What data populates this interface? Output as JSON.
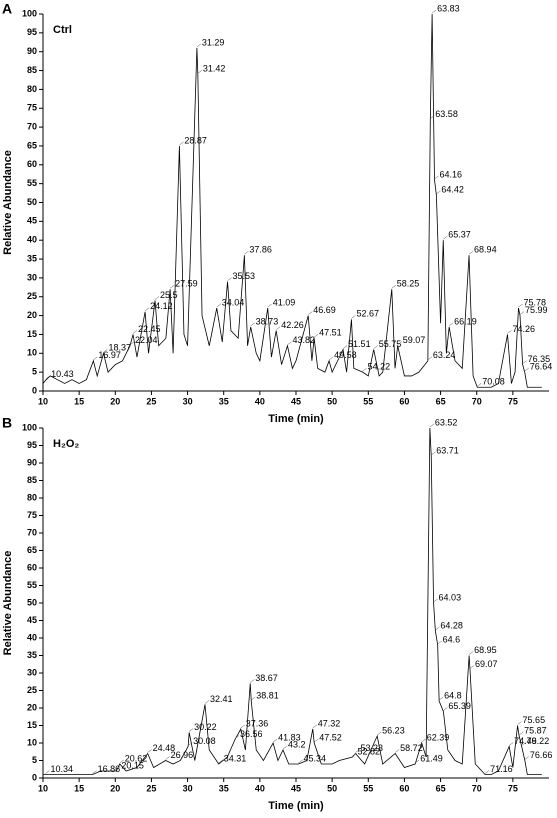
{
  "chart_data": [
    {
      "type": "line",
      "panel_label": "A",
      "title": "Ctrl",
      "xlabel": "Time (min)",
      "ylabel": "Relative Abundance",
      "color": "#000000",
      "xlim": [
        10,
        80
      ],
      "ylim": [
        0,
        100
      ],
      "xticks": [
        10,
        15,
        20,
        25,
        30,
        35,
        40,
        45,
        50,
        55,
        60,
        65,
        70,
        75
      ],
      "yticks": [
        0,
        5,
        10,
        15,
        20,
        25,
        30,
        35,
        40,
        45,
        50,
        55,
        60,
        65,
        70,
        75,
        80,
        85,
        90,
        95,
        100
      ],
      "x": [
        10,
        10.43,
        11,
        12,
        13,
        14,
        15,
        16,
        16.97,
        17.5,
        18.37,
        19,
        20,
        21,
        22.04,
        22.45,
        23,
        24.12,
        24.6,
        25.5,
        26,
        27,
        27.59,
        28,
        28.87,
        29.5,
        30,
        31.29,
        31.42,
        32,
        33,
        34.04,
        34.8,
        35.53,
        36,
        37,
        37.86,
        38.3,
        38.73,
        39.5,
        40,
        41.09,
        41.6,
        42.26,
        43,
        43.82,
        44.5,
        45,
        46.69,
        47.2,
        47.51,
        48,
        49,
        49.58,
        50,
        51.51,
        52,
        52.67,
        53,
        54.22,
        55,
        55.75,
        56.5,
        57,
        58.25,
        58.7,
        59.07,
        60,
        61,
        62,
        63.24,
        63.58,
        63.83,
        64.16,
        64.42,
        65,
        65.37,
        65.8,
        66.19,
        67,
        68,
        68.94,
        69.5,
        70.08,
        71,
        72,
        73,
        74.26,
        74.8,
        75.3,
        75.78,
        75.99,
        76.35,
        76.64,
        77,
        78,
        79
      ],
      "values": [
        2,
        3,
        4,
        3,
        2,
        3,
        2,
        3,
        8,
        4,
        10,
        5,
        7,
        8,
        12,
        15,
        9,
        21,
        10,
        24,
        12,
        14,
        27,
        10,
        65,
        15,
        12,
        91,
        84,
        20,
        12,
        22,
        13,
        29,
        16,
        14,
        36,
        12,
        17,
        10,
        8,
        22,
        9,
        16,
        7,
        12,
        6,
        8,
        20,
        8,
        14,
        6,
        5,
        8,
        5,
        11,
        5,
        19,
        6,
        5,
        4,
        11,
        4,
        5,
        27,
        6,
        12,
        4,
        4,
        5,
        8,
        72,
        100,
        56,
        52,
        18,
        40,
        10,
        17,
        8,
        6,
        36,
        4,
        1,
        1,
        1,
        2,
        15,
        2,
        5,
        22,
        20,
        7,
        5,
        1,
        1,
        1
      ],
      "annotations": [
        {
          "x": 10.43,
          "y": 3
        },
        {
          "x": 16.97,
          "y": 8
        },
        {
          "x": 18.37,
          "y": 10
        },
        {
          "x": 22.04,
          "y": 12
        },
        {
          "x": 22.45,
          "y": 15
        },
        {
          "x": 24.12,
          "y": 21
        },
        {
          "x": 25.5,
          "y": 24
        },
        {
          "x": 27.59,
          "y": 27
        },
        {
          "x": 28.87,
          "y": 65
        },
        {
          "x": 31.29,
          "y": 91
        },
        {
          "x": 31.42,
          "y": 84
        },
        {
          "x": 34.04,
          "y": 22
        },
        {
          "x": 35.53,
          "y": 29
        },
        {
          "x": 37.86,
          "y": 36
        },
        {
          "x": 38.73,
          "y": 17
        },
        {
          "x": 41.09,
          "y": 22
        },
        {
          "x": 42.26,
          "y": 16
        },
        {
          "x": 43.82,
          "y": 12
        },
        {
          "x": 46.69,
          "y": 20
        },
        {
          "x": 47.51,
          "y": 14
        },
        {
          "x": 49.58,
          "y": 8
        },
        {
          "x": 51.51,
          "y": 11
        },
        {
          "x": 52.67,
          "y": 19
        },
        {
          "x": 54.22,
          "y": 5
        },
        {
          "x": 55.75,
          "y": 11
        },
        {
          "x": 58.25,
          "y": 27
        },
        {
          "x": 59.07,
          "y": 12
        },
        {
          "x": 63.24,
          "y": 8
        },
        {
          "x": 63.58,
          "y": 72
        },
        {
          "x": 63.83,
          "y": 100
        },
        {
          "x": 64.16,
          "y": 56
        },
        {
          "x": 64.42,
          "y": 52
        },
        {
          "x": 65.37,
          "y": 40
        },
        {
          "x": 66.19,
          "y": 17
        },
        {
          "x": 68.94,
          "y": 36
        },
        {
          "x": 70.08,
          "y": 1
        },
        {
          "x": 74.26,
          "y": 15
        },
        {
          "x": 75.78,
          "y": 22
        },
        {
          "x": 75.99,
          "y": 20
        },
        {
          "x": 76.35,
          "y": 7
        },
        {
          "x": 76.64,
          "y": 5
        }
      ]
    },
    {
      "type": "line",
      "panel_label": "B",
      "title": "H₂O₂",
      "xlabel": "Time (min)",
      "ylabel": "Relative Abundance",
      "color": "#000000",
      "xlim": [
        10,
        80
      ],
      "ylim": [
        0,
        100
      ],
      "xticks": [
        10,
        15,
        20,
        25,
        30,
        35,
        40,
        45,
        50,
        55,
        60,
        65,
        70,
        75
      ],
      "yticks": [
        0,
        5,
        10,
        15,
        20,
        25,
        30,
        35,
        40,
        45,
        50,
        55,
        60,
        65,
        70,
        75,
        80,
        85,
        90,
        95,
        100
      ],
      "x": [
        10,
        10.34,
        12,
        14,
        16,
        16.86,
        18,
        20.15,
        20.62,
        21.5,
        23,
        24.48,
        25.3,
        26.96,
        28,
        29,
        30.08,
        30.22,
        31,
        32.41,
        33,
        34.31,
        35.5,
        36.56,
        37.36,
        38,
        38.67,
        38.81,
        39.5,
        40.5,
        41.83,
        42.5,
        43.2,
        44,
        45.34,
        46.5,
        47.32,
        47.52,
        48.5,
        50,
        51,
        52.82,
        53.23,
        54.5,
        56.23,
        57,
        58.72,
        60,
        61.49,
        62.39,
        63,
        63.52,
        63.71,
        64.03,
        64.28,
        64.6,
        64.8,
        65.39,
        66,
        67,
        68,
        68.95,
        69.07,
        69.8,
        71.16,
        72,
        73,
        74.49,
        75,
        75.65,
        75.87,
        76.22,
        76.66,
        77,
        78,
        79
      ],
      "values": [
        1,
        1,
        1,
        1,
        1,
        1,
        2,
        2,
        4,
        2,
        3,
        7,
        3,
        5,
        4,
        5,
        9,
        13,
        5,
        21,
        8,
        4,
        6,
        11,
        14,
        8,
        27,
        22,
        8,
        5,
        10,
        5,
        8,
        4,
        4,
        5,
        14,
        10,
        4,
        4,
        5,
        6,
        7,
        4,
        12,
        4,
        7,
        3,
        4,
        10,
        6,
        100,
        92,
        50,
        42,
        38,
        22,
        19,
        8,
        5,
        4,
        35,
        31,
        4,
        1,
        1,
        2,
        9,
        3,
        15,
        12,
        9,
        5,
        1,
        1,
        1
      ],
      "annotations": [
        {
          "x": 10.34,
          "y": 1
        },
        {
          "x": 16.86,
          "y": 1
        },
        {
          "x": 20.15,
          "y": 2
        },
        {
          "x": 20.62,
          "y": 4
        },
        {
          "x": 24.48,
          "y": 7
        },
        {
          "x": 26.96,
          "y": 5
        },
        {
          "x": 30.08,
          "y": 9
        },
        {
          "x": 30.22,
          "y": 13
        },
        {
          "x": 32.41,
          "y": 21
        },
        {
          "x": 34.31,
          "y": 4
        },
        {
          "x": 36.56,
          "y": 11
        },
        {
          "x": 37.36,
          "y": 14
        },
        {
          "x": 38.67,
          "y": 27
        },
        {
          "x": 38.81,
          "y": 22
        },
        {
          "x": 41.83,
          "y": 10
        },
        {
          "x": 43.2,
          "y": 8
        },
        {
          "x": 45.34,
          "y": 4
        },
        {
          "x": 47.32,
          "y": 14
        },
        {
          "x": 47.52,
          "y": 10
        },
        {
          "x": 52.82,
          "y": 6
        },
        {
          "x": 53.23,
          "y": 7
        },
        {
          "x": 56.23,
          "y": 12
        },
        {
          "x": 58.72,
          "y": 7
        },
        {
          "x": 61.49,
          "y": 4
        },
        {
          "x": 62.39,
          "y": 10
        },
        {
          "x": 63.52,
          "y": 100
        },
        {
          "x": 63.71,
          "y": 92
        },
        {
          "x": 64.03,
          "y": 50
        },
        {
          "x": 64.28,
          "y": 42
        },
        {
          "x": 64.6,
          "y": 38
        },
        {
          "x": 64.8,
          "y": 22
        },
        {
          "x": 65.39,
          "y": 19
        },
        {
          "x": 68.95,
          "y": 35
        },
        {
          "x": 69.07,
          "y": 31
        },
        {
          "x": 71.16,
          "y": 1
        },
        {
          "x": 74.49,
          "y": 9
        },
        {
          "x": 75.65,
          "y": 15
        },
        {
          "x": 75.87,
          "y": 12
        },
        {
          "x": 76.22,
          "y": 9
        },
        {
          "x": 76.66,
          "y": 5
        }
      ]
    }
  ]
}
